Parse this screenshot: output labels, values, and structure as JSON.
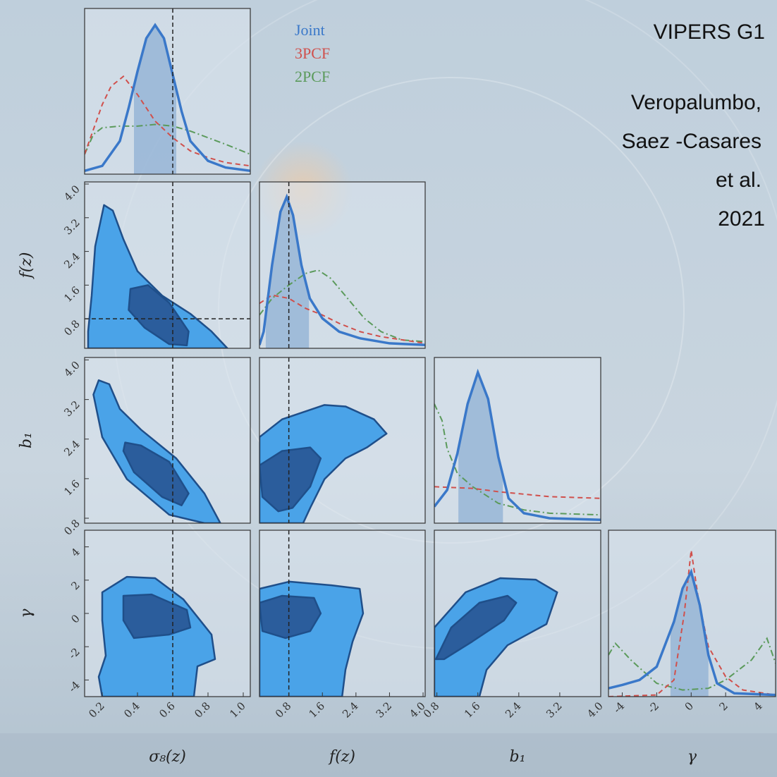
{
  "slide": {
    "title": "VIPERS G1",
    "credit": [
      "Veropalumbo,",
      "Saez -Casares",
      "et al.",
      "2021"
    ]
  },
  "chart_data": [
    {
      "type": "line",
      "xlim": [
        0.1,
        1.04
      ],
      "ylim": [
        0,
        1
      ],
      "xref": 0.6,
      "interval": [
        0.38,
        0.62
      ],
      "series": [
        {
          "name": "Joint",
          "color": "#3a78c9",
          "linestyle": "solid",
          "x": [
            0.1,
            0.2,
            0.3,
            0.35,
            0.4,
            0.45,
            0.5,
            0.55,
            0.6,
            0.65,
            0.7,
            0.8,
            0.9,
            1.04
          ],
          "values": [
            0.02,
            0.05,
            0.2,
            0.4,
            0.62,
            0.82,
            0.9,
            0.82,
            0.6,
            0.38,
            0.2,
            0.08,
            0.04,
            0.02
          ]
        },
        {
          "name": "3PCF",
          "color": "#d0504c",
          "linestyle": "dashed",
          "x": [
            0.1,
            0.2,
            0.25,
            0.32,
            0.4,
            0.5,
            0.6,
            0.7,
            0.8,
            0.9,
            1.04
          ],
          "values": [
            0.12,
            0.42,
            0.53,
            0.59,
            0.48,
            0.32,
            0.22,
            0.14,
            0.1,
            0.07,
            0.05
          ]
        },
        {
          "name": "2PCF",
          "color": "#5b9a5b",
          "linestyle": "dashdot",
          "x": [
            0.1,
            0.15,
            0.2,
            0.3,
            0.4,
            0.5,
            0.6,
            0.7,
            0.8,
            0.9,
            1.04
          ],
          "values": [
            0.12,
            0.24,
            0.28,
            0.29,
            0.29,
            0.3,
            0.29,
            0.26,
            0.22,
            0.18,
            0.12
          ]
        }
      ]
    },
    {
      "type": "contour",
      "xlim": [
        0.1,
        1.04
      ],
      "ylim": [
        0.1,
        4.05
      ],
      "xref": 0.6,
      "yref": 0.8,
      "ylabel": "f(z)",
      "yticks": [
        0.8,
        1.6,
        2.4,
        3.2,
        {
          "value": 4,
          "label": "4.0"
        }
      ],
      "levels": [
        {
          "color": "#4aa3e8",
          "x": [
            0.21,
            0.16,
            0.14,
            0.12,
            0.12,
            0.91,
            0.82,
            0.7,
            0.54,
            0.4,
            0.32,
            0.26
          ],
          "y": [
            3.5,
            2.52,
            1.35,
            0.5,
            0.1,
            0.1,
            0.5,
            0.92,
            1.35,
            1.93,
            2.69,
            3.37
          ]
        },
        {
          "color": "#2b5d9c",
          "x": [
            0.36,
            0.46,
            0.58,
            0.69,
            0.68,
            0.58,
            0.44,
            0.35
          ],
          "y": [
            1.51,
            1.6,
            1.18,
            0.5,
            0.17,
            0.2,
            0.59,
            1.01
          ]
        }
      ]
    },
    {
      "type": "line",
      "xlim": [
        0.1,
        4.05
      ],
      "ylim": [
        0,
        1
      ],
      "xref": 0.8,
      "interval": [
        0.25,
        1.28
      ],
      "series": [
        {
          "color": "#3a78c9",
          "linestyle": "solid",
          "x": [
            0.1,
            0.2,
            0.4,
            0.6,
            0.75,
            0.9,
            1.1,
            1.3,
            1.6,
            2.0,
            2.5,
            3.2,
            4.05
          ],
          "values": [
            0.02,
            0.1,
            0.5,
            0.82,
            0.91,
            0.8,
            0.5,
            0.3,
            0.18,
            0.1,
            0.06,
            0.03,
            0.02
          ]
        },
        {
          "color": "#d0504c",
          "linestyle": "dashed",
          "x": [
            0.1,
            0.4,
            0.8,
            1.2,
            1.6,
            2.0,
            2.5,
            3.0,
            4.05
          ],
          "values": [
            0.27,
            0.32,
            0.3,
            0.24,
            0.2,
            0.15,
            0.1,
            0.07,
            0.03
          ]
        },
        {
          "color": "#5b9a5b",
          "linestyle": "dashdot",
          "x": [
            0.1,
            0.4,
            0.8,
            1.2,
            1.5,
            1.8,
            2.2,
            2.6,
            3.0,
            3.5,
            4.05
          ],
          "values": [
            0.2,
            0.3,
            0.38,
            0.45,
            0.47,
            0.42,
            0.3,
            0.18,
            0.1,
            0.05,
            0.04
          ]
        }
      ]
    },
    {
      "type": "contour",
      "xlim": [
        0.1,
        1.04
      ],
      "ylim": [
        0.7,
        4.05
      ],
      "xref": 0.6,
      "ylabel": "b₁",
      "yticks": [
        0.8,
        1.6,
        2.4,
        3.2,
        {
          "value": 4,
          "label": "4.0"
        }
      ],
      "levels": [
        {
          "color": "#4aa3e8",
          "x": [
            0.18,
            0.24,
            0.3,
            0.42,
            0.62,
            0.78,
            0.87,
            0.78,
            0.58,
            0.34,
            0.2,
            0.15
          ],
          "y": [
            3.59,
            3.51,
            3.01,
            2.59,
            2.01,
            1.3,
            0.7,
            0.7,
            0.87,
            1.59,
            2.44,
            3.3
          ]
        },
        {
          "color": "#2b5d9c",
          "x": [
            0.33,
            0.42,
            0.58,
            0.69,
            0.65,
            0.54,
            0.38,
            0.32
          ],
          "y": [
            2.33,
            2.27,
            1.94,
            1.3,
            1.06,
            1.23,
            1.73,
            2.16
          ]
        }
      ]
    },
    {
      "type": "contour",
      "xlim": [
        0.1,
        4.05
      ],
      "ylim": [
        0.7,
        4.05
      ],
      "xref": 0.8,
      "levels": [
        {
          "color": "#4aa3e8",
          "x": [
            0.1,
            0.64,
            1.65,
            2.15,
            2.83,
            3.13,
            2.66,
            2.15,
            1.65,
            1.31,
            1.14,
            0.1
          ],
          "y": [
            2.44,
            2.8,
            3.09,
            3.06,
            2.8,
            2.51,
            2.23,
            2.01,
            1.59,
            1.01,
            0.7,
            0.7
          ]
        },
        {
          "color": "#2b5d9c",
          "x": [
            0.1,
            0.64,
            1.31,
            1.56,
            1.31,
            0.89,
            0.55,
            0.17
          ],
          "y": [
            1.87,
            2.16,
            2.23,
            2.01,
            1.44,
            1.01,
            0.94,
            1.23
          ]
        }
      ]
    },
    {
      "type": "line",
      "xlim": [
        0.75,
        4
      ],
      "ylim": [
        0,
        1
      ],
      "interval": [
        1.22,
        2.09
      ],
      "series": [
        {
          "color": "#3a78c9",
          "linestyle": "solid",
          "x": [
            0.75,
            1.0,
            1.2,
            1.4,
            1.6,
            1.8,
            2.0,
            2.2,
            2.5,
            3.0,
            4.0
          ],
          "values": [
            0.1,
            0.2,
            0.42,
            0.72,
            0.91,
            0.75,
            0.4,
            0.15,
            0.06,
            0.03,
            0.02
          ]
        },
        {
          "color": "#d0504c",
          "linestyle": "dashed",
          "x": [
            0.75,
            1.5,
            2.0,
            3.0,
            4.0
          ],
          "values": [
            0.22,
            0.21,
            0.19,
            0.16,
            0.15
          ]
        },
        {
          "color": "#5b9a5b",
          "linestyle": "dashdot",
          "x": [
            0.75,
            0.9,
            1.0,
            1.2,
            1.5,
            2.0,
            2.5,
            3.0,
            4.0
          ],
          "values": [
            0.72,
            0.62,
            0.45,
            0.3,
            0.22,
            0.12,
            0.08,
            0.06,
            0.05
          ]
        }
      ]
    },
    {
      "type": "contour",
      "xlim": [
        0.1,
        1.04
      ],
      "ylim": [
        -5,
        5
      ],
      "xref": 0.6,
      "xlabel": "σ₈(z)",
      "ylabel": "γ",
      "xticks": [
        0.2,
        0.4,
        0.6,
        0.8,
        {
          "value": 1,
          "label": "1.0"
        }
      ],
      "yticks": [
        -4,
        -2,
        0,
        2,
        4
      ],
      "levels": [
        {
          "color": "#4aa3e8",
          "x": [
            0.2,
            0.34,
            0.5,
            0.66,
            0.82,
            0.84,
            0.74,
            0.72,
            0.2,
            0.18,
            0.22,
            0.2
          ],
          "y": [
            1.27,
            2.2,
            2.12,
            0.85,
            -1.27,
            -2.75,
            -3.18,
            -5,
            -5,
            -3.81,
            -2.54,
            -0.42
          ]
        },
        {
          "color": "#2b5d9c",
          "x": [
            0.32,
            0.48,
            0.68,
            0.7,
            0.58,
            0.38,
            0.32
          ],
          "y": [
            1.06,
            1.14,
            0.21,
            -0.85,
            -1.27,
            -1.48,
            -0.42
          ]
        }
      ]
    },
    {
      "type": "contour",
      "xlim": [
        0.1,
        4.05
      ],
      "ylim": [
        -5,
        5
      ],
      "xref": 0.8,
      "xlabel": "f(z)",
      "xticks": [
        0.8,
        1.6,
        2.4,
        3.2,
        {
          "value": 4,
          "label": "4.0"
        }
      ],
      "levels": [
        {
          "color": "#4aa3e8",
          "x": [
            0.1,
            0.81,
            1.82,
            2.49,
            2.57,
            2.32,
            2.15,
            2.07,
            0.1
          ],
          "y": [
            1.48,
            1.91,
            1.69,
            1.48,
            0,
            -1.69,
            -3.39,
            -5,
            -5
          ]
        },
        {
          "color": "#2b5d9c",
          "x": [
            0.1,
            0.64,
            1.4,
            1.56,
            1.31,
            0.72,
            0.17
          ],
          "y": [
            0.64,
            1.06,
            0.93,
            0,
            -1.06,
            -1.48,
            -1.06
          ]
        }
      ]
    },
    {
      "type": "contour",
      "xlim": [
        0.75,
        4
      ],
      "ylim": [
        -5,
        5
      ],
      "xlabel": "b₁",
      "xticks": [
        0.8,
        1.6,
        2.4,
        3.2,
        {
          "value": 4,
          "label": "4.0"
        }
      ],
      "levels": [
        {
          "color": "#4aa3e8",
          "x": [
            0.75,
            1.36,
            2.04,
            2.73,
            3.15,
            2.94,
            2.18,
            1.77,
            1.63,
            0.75
          ],
          "y": [
            -0.85,
            1.27,
            2.12,
            2.03,
            1.27,
            -0.64,
            -1.91,
            -3.39,
            -5,
            -5
          ]
        },
        {
          "color": "#2b5d9c",
          "x": [
            0.78,
            1.08,
            1.63,
            2.18,
            2.35,
            2.11,
            1.49,
            0.94
          ],
          "y": [
            -2.75,
            -0.85,
            0.64,
            1.06,
            0.64,
            -0.42,
            -1.69,
            -2.75
          ]
        }
      ]
    },
    {
      "type": "line",
      "xlim": [
        -4.8,
        4.9
      ],
      "ylim": [
        0,
        1
      ],
      "xlabel": "γ",
      "interval": [
        -1.2,
        1.0
      ],
      "xticks": [
        -4,
        -2,
        0,
        2,
        4
      ],
      "series": [
        {
          "color": "#3a78c9",
          "linestyle": "solid",
          "x": [
            -4.8,
            -4,
            -3,
            -2,
            -1,
            -0.5,
            0,
            0.5,
            1,
            1.5,
            2.5,
            4.9
          ],
          "values": [
            0.05,
            0.07,
            0.1,
            0.18,
            0.45,
            0.65,
            0.75,
            0.55,
            0.25,
            0.08,
            0.02,
            0.01
          ]
        },
        {
          "color": "#d0504c",
          "linestyle": "dashed",
          "x": [
            -4.8,
            -2,
            -1,
            -0.4,
            0,
            0.4,
            1,
            2,
            3,
            4.9
          ],
          "values": [
            0,
            0.01,
            0.1,
            0.5,
            0.88,
            0.6,
            0.3,
            0.12,
            0.04,
            0.01
          ]
        },
        {
          "color": "#5b9a5b",
          "linestyle": "dashdot",
          "x": [
            -4.8,
            -4.4,
            -3.5,
            -2,
            -0.5,
            1,
            2,
            3.5,
            4.4,
            4.9
          ],
          "values": [
            0.25,
            0.32,
            0.22,
            0.08,
            0.04,
            0.05,
            0.1,
            0.22,
            0.35,
            0.2
          ]
        }
      ]
    }
  ]
}
